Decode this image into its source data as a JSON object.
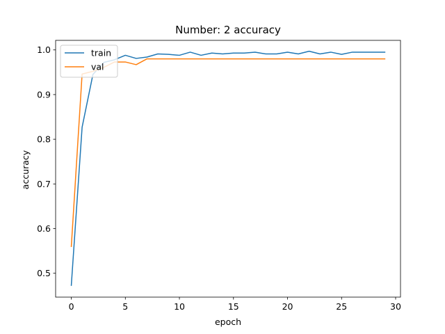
{
  "chart_data": {
    "type": "line",
    "title": "Number: 2 accuracy",
    "xlabel": "epoch",
    "ylabel": "accuracy",
    "x": [
      0,
      1,
      2,
      3,
      4,
      5,
      6,
      7,
      8,
      9,
      10,
      11,
      12,
      13,
      14,
      15,
      16,
      17,
      18,
      19,
      20,
      21,
      22,
      23,
      24,
      25,
      26,
      27,
      28,
      29
    ],
    "xlim": [
      -1.45,
      30.45
    ],
    "ylim": [
      0.4466,
      1.0214
    ],
    "xticks": [
      0,
      5,
      10,
      15,
      20,
      25,
      30
    ],
    "yticks": [
      0.5,
      0.6,
      0.7,
      0.8,
      0.9,
      1.0
    ],
    "xtick_labels": [
      "0",
      "5",
      "10",
      "15",
      "20",
      "25",
      "30"
    ],
    "ytick_labels": [
      "0.5",
      "0.6",
      "0.7",
      "0.8",
      "0.9",
      "1.0"
    ],
    "grid": false,
    "legend": "top-left",
    "series": [
      {
        "name": "train",
        "color": "#1f77b4",
        "values": [
          0.473,
          0.827,
          0.945,
          0.972,
          0.978,
          0.988,
          0.981,
          0.984,
          0.991,
          0.99,
          0.988,
          0.995,
          0.988,
          0.993,
          0.991,
          0.993,
          0.993,
          0.995,
          0.991,
          0.991,
          0.995,
          0.991,
          0.997,
          0.991,
          0.995,
          0.99,
          0.995,
          0.995,
          0.995,
          0.995
        ]
      },
      {
        "name": "val",
        "color": "#ff7f0e",
        "values": [
          0.56,
          0.946,
          0.952,
          0.961,
          0.973,
          0.973,
          0.967,
          0.98,
          0.98,
          0.98,
          0.98,
          0.98,
          0.98,
          0.98,
          0.98,
          0.98,
          0.98,
          0.98,
          0.98,
          0.98,
          0.98,
          0.98,
          0.98,
          0.98,
          0.98,
          0.98,
          0.98,
          0.98,
          0.98,
          0.98
        ]
      }
    ]
  }
}
